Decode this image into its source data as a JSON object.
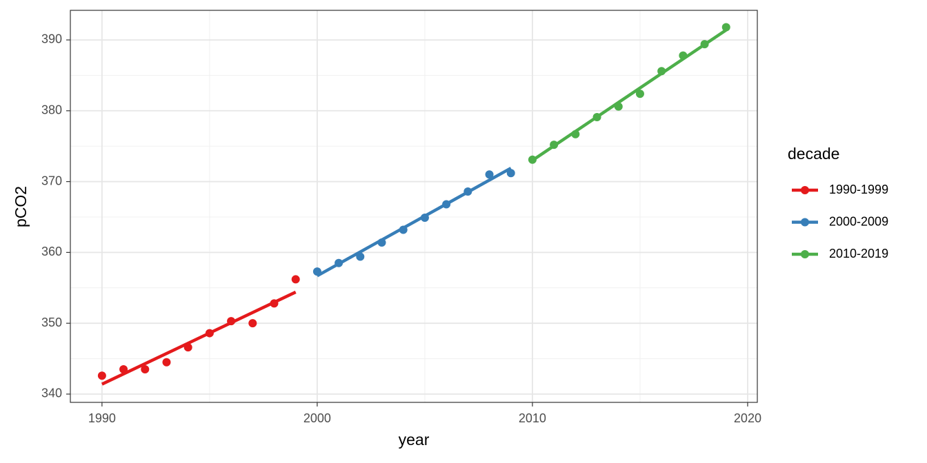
{
  "chart_data": {
    "type": "scatter",
    "x_label": "year",
    "y_label": "pCO2",
    "legend_title": "decade",
    "legend_position": "right",
    "xlim": [
      1988.53,
      2020.45
    ],
    "ylim": [
      338.83,
      394.18
    ],
    "xticks": [
      1990,
      2000,
      2010,
      2020
    ],
    "yticks": [
      340,
      350,
      360,
      370,
      380,
      390
    ],
    "grid": true,
    "minor_grid": true,
    "series": [
      {
        "name": "1990-1999",
        "color": "#e41a1c",
        "x": [
          1990,
          1991,
          1992,
          1993,
          1994,
          1995,
          1996,
          1997,
          1998,
          1999
        ],
        "values": [
          342.6,
          343.5,
          343.5,
          344.5,
          346.6,
          348.6,
          350.3,
          350.0,
          352.8,
          356.2
        ],
        "fit": [
          341.4,
          354.4
        ]
      },
      {
        "name": "2000-2009",
        "color": "#377eb8",
        "x": [
          2000,
          2001,
          2002,
          2003,
          2004,
          2005,
          2006,
          2007,
          2008,
          2009
        ],
        "values": [
          357.3,
          358.5,
          359.4,
          361.4,
          363.2,
          364.9,
          366.8,
          368.6,
          371.0,
          371.2
        ],
        "fit": [
          356.7,
          371.9
        ]
      },
      {
        "name": "2010-2019",
        "color": "#4daf4a",
        "x": [
          2010,
          2011,
          2012,
          2013,
          2014,
          2015,
          2016,
          2017,
          2018,
          2019
        ],
        "values": [
          373.1,
          375.2,
          376.7,
          379.1,
          380.6,
          382.4,
          385.6,
          387.8,
          389.4,
          391.8
        ],
        "fit": [
          373.0,
          391.4
        ]
      }
    ]
  }
}
